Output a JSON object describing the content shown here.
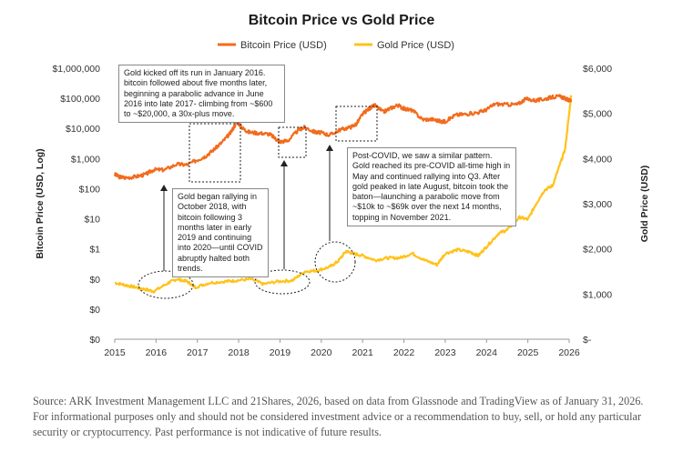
{
  "chart_data": {
    "type": "line",
    "title": "Bitcoin Price vs Gold Price",
    "ylabel_left": "Bitcoin Price (USD, Log)",
    "ylabel_right": "Gold Price (USD)",
    "x_ticks": [
      "2015",
      "2016",
      "2017",
      "2018",
      "2019",
      "2020",
      "2021",
      "2022",
      "2023",
      "2024",
      "2025",
      "2026"
    ],
    "left_axis": {
      "scale": "log",
      "ticks": [
        "$0",
        "$0",
        "$1",
        "$10",
        "$100",
        "$1,000",
        "$10,000",
        "$100,000",
        "$1,000,000"
      ],
      "tick_values": [
        0.001,
        0.01,
        0.1,
        1,
        10,
        100,
        1000,
        10000,
        100000,
        1000000
      ],
      "bottom_tick_label": "$0"
    },
    "right_axis": {
      "scale": "linear",
      "ticks": [
        "$-",
        "$1,000",
        "$2,000",
        "$3,000",
        "$4,000",
        "$5,000",
        "$6,000"
      ],
      "ylim": [
        0,
        6000
      ]
    },
    "grid": false,
    "legend_position": "top-center",
    "series": [
      {
        "name": "Bitcoin Price (USD)",
        "color": "#F26B1D",
        "axis": "left",
        "x": [
          2015.0,
          2015.1,
          2015.25,
          2015.5,
          2015.75,
          2015.95,
          2016.2,
          2016.5,
          2016.75,
          2017.0,
          2017.2,
          2017.4,
          2017.6,
          2017.8,
          2017.96,
          2018.1,
          2018.25,
          2018.5,
          2018.75,
          2018.9,
          2019.0,
          2019.2,
          2019.45,
          2019.6,
          2019.85,
          2020.0,
          2020.2,
          2020.45,
          2020.7,
          2020.85,
          2021.0,
          2021.15,
          2021.3,
          2021.5,
          2021.65,
          2021.85,
          2022.0,
          2022.2,
          2022.45,
          2022.7,
          2022.9,
          2023.0,
          2023.25,
          2023.5,
          2023.8,
          2024.0,
          2024.2,
          2024.5,
          2024.75,
          2024.95,
          2025.2,
          2025.4,
          2025.6,
          2025.8,
          2025.95,
          2026.05
        ],
        "y": [
          300,
          250,
          230,
          250,
          300,
          430,
          420,
          650,
          620,
          900,
          1200,
          2000,
          3500,
          7000,
          17000,
          10000,
          7500,
          7000,
          6500,
          4500,
          3600,
          4000,
          9000,
          11000,
          7500,
          7200,
          6000,
          9000,
          11000,
          14000,
          30000,
          45000,
          58000,
          35000,
          45000,
          60000,
          45000,
          40000,
          20000,
          20000,
          17000,
          17000,
          28000,
          30000,
          34000,
          42000,
          65000,
          62000,
          63000,
          95000,
          85000,
          95000,
          110000,
          115000,
          90000,
          85000
        ]
      },
      {
        "name": "Gold Price (USD)",
        "color": "#FFC21A",
        "axis": "right",
        "x": [
          2015.0,
          2015.25,
          2015.5,
          2015.75,
          2015.95,
          2016.3,
          2016.5,
          2016.75,
          2016.95,
          2017.3,
          2017.7,
          2017.95,
          2018.3,
          2018.6,
          2018.95,
          2019.3,
          2019.6,
          2019.9,
          2020.2,
          2020.4,
          2020.6,
          2020.75,
          2021.0,
          2021.3,
          2021.6,
          2021.9,
          2022.2,
          2022.5,
          2022.8,
          2023.0,
          2023.3,
          2023.6,
          2023.8,
          2024.0,
          2024.3,
          2024.5,
          2024.8,
          2025.0,
          2025.2,
          2025.4,
          2025.6,
          2025.75,
          2025.9,
          2026.0,
          2026.05
        ],
        "y": [
          1250,
          1200,
          1150,
          1100,
          1060,
          1250,
          1330,
          1280,
          1150,
          1250,
          1280,
          1300,
          1330,
          1220,
          1280,
          1300,
          1500,
          1520,
          1600,
          1720,
          1950,
          1900,
          1850,
          1750,
          1800,
          1800,
          1900,
          1750,
          1650,
          1900,
          1980,
          1930,
          1850,
          2050,
          2350,
          2420,
          2700,
          2650,
          3000,
          3300,
          3400,
          3800,
          4200,
          5000,
          5400
        ]
      }
    ]
  },
  "annotations": {
    "top_left": "Gold kicked off its run in January 2016. bitcoin followed about five months later, beginning a parabolic advance in June 2016 into late 2017- climbing from ~$600 to ~$20,000, a 30x-plus move.",
    "middle_left": "Gold began rallying in October 2018, with bitcoin following  3 months later in early 2019 and continuing into 2020—until COVID abruptly halted both trends.",
    "right": "Post-COVID, we saw a similar pattern. Gold reached its pre-COVID all-time high in May and continued rallying into Q3. After gold peaked in late August, bitcoin took the baton—launching a parabolic move from ~$10k to ~$69k over the next 14 months, topping in November 2021."
  },
  "source_note": "Source: ARK Investment Management LLC and 21Shares, 2026, based on data from Glassnode and TradingView as of January 31, 2026. For informational purposes only and should not be considered investment advice or a recommendation to buy, sell, or hold any particular security or cryptocurrency. Past performance is not indicative of future results."
}
